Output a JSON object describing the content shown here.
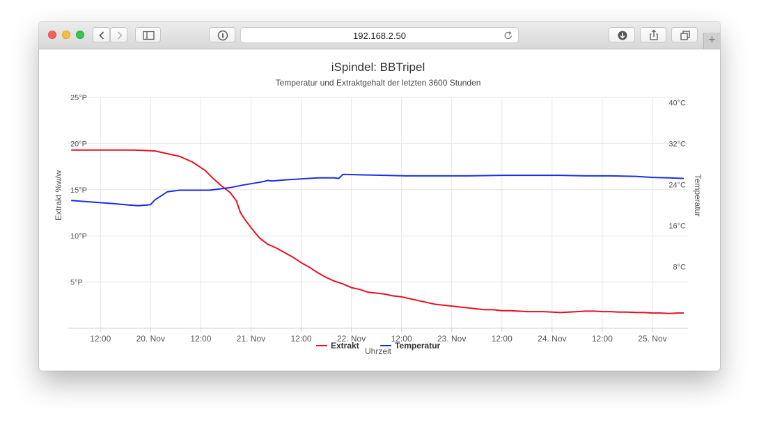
{
  "browser": {
    "url": "192.168.2.50",
    "new_tab_label": "+"
  },
  "chart_data": {
    "type": "line",
    "title": "iSpindel: BBTripel",
    "subtitle": "Temperatur und Extraktgehalt der letzten 3600 Stunden",
    "xlabel": "Uhrzeit",
    "ylabel_left": "Extrakt %w/w",
    "ylabel_right": "Temperatur",
    "x_unit": "hours since 19 Nov 00:00",
    "xlim": [
      4.3,
      152.5
    ],
    "x_ticks": [
      {
        "x": 12,
        "label": "12:00"
      },
      {
        "x": 24,
        "label": "20. Nov"
      },
      {
        "x": 36,
        "label": "12:00"
      },
      {
        "x": 48,
        "label": "21. Nov"
      },
      {
        "x": 60,
        "label": "12:00"
      },
      {
        "x": 72,
        "label": "22. Nov"
      },
      {
        "x": 84,
        "label": "12:00"
      },
      {
        "x": 96,
        "label": "23. Nov"
      },
      {
        "x": 108,
        "label": "12:00"
      },
      {
        "x": 120,
        "label": "24. Nov"
      },
      {
        "x": 132,
        "label": "12:00"
      },
      {
        "x": 144,
        "label": "25. Nov"
      }
    ],
    "y_left": {
      "lim": [
        0,
        25
      ],
      "ticks": [
        {
          "v": 25,
          "label": "25°P"
        },
        {
          "v": 20,
          "label": "20°P"
        },
        {
          "v": 15,
          "label": "15°P"
        },
        {
          "v": 10,
          "label": "10°P"
        },
        {
          "v": 5,
          "label": "5°P"
        }
      ]
    },
    "y_right": {
      "lim": [
        -4,
        41
      ],
      "ticks": [
        {
          "v": 40,
          "label": "40°C"
        },
        {
          "v": 32,
          "label": "32°C"
        },
        {
          "v": 24,
          "label": "24°C"
        },
        {
          "v": 16,
          "label": "16°C"
        },
        {
          "v": 8,
          "label": "8°C"
        }
      ]
    },
    "grid": true,
    "legend_position": "bottom-center",
    "series": [
      {
        "name": "Extrakt",
        "axis": "left",
        "color": "#e8101e",
        "points": [
          [
            5,
            19.3
          ],
          [
            10,
            19.3
          ],
          [
            15,
            19.3
          ],
          [
            20,
            19.3
          ],
          [
            25,
            19.2
          ],
          [
            28,
            18.9
          ],
          [
            31,
            18.6
          ],
          [
            34,
            18.0
          ],
          [
            37,
            17.1
          ],
          [
            39,
            16.2
          ],
          [
            41,
            15.4
          ],
          [
            43,
            14.7
          ],
          [
            44.5,
            13.8
          ],
          [
            45.5,
            12.5
          ],
          [
            46.5,
            11.8
          ],
          [
            48,
            10.9
          ],
          [
            50,
            9.8
          ],
          [
            52,
            9.1
          ],
          [
            54,
            8.7
          ],
          [
            56,
            8.2
          ],
          [
            58,
            7.7
          ],
          [
            60,
            7.1
          ],
          [
            62,
            6.6
          ],
          [
            64,
            6.0
          ],
          [
            66,
            5.5
          ],
          [
            68,
            5.1
          ],
          [
            70,
            4.8
          ],
          [
            72,
            4.4
          ],
          [
            74,
            4.2
          ],
          [
            76,
            3.9
          ],
          [
            78,
            3.8
          ],
          [
            80,
            3.7
          ],
          [
            82,
            3.5
          ],
          [
            84,
            3.4
          ],
          [
            86,
            3.2
          ],
          [
            88,
            3.0
          ],
          [
            90,
            2.8
          ],
          [
            92,
            2.6
          ],
          [
            94,
            2.5
          ],
          [
            96,
            2.4
          ],
          [
            98,
            2.3
          ],
          [
            100,
            2.2
          ],
          [
            102,
            2.1
          ],
          [
            104,
            2.0
          ],
          [
            106,
            2.0
          ],
          [
            108,
            1.9
          ],
          [
            110,
            1.9
          ],
          [
            112,
            1.85
          ],
          [
            114,
            1.8
          ],
          [
            116,
            1.8
          ],
          [
            118,
            1.8
          ],
          [
            120,
            1.75
          ],
          [
            122,
            1.7
          ],
          [
            124,
            1.75
          ],
          [
            126,
            1.8
          ],
          [
            128,
            1.85
          ],
          [
            130,
            1.85
          ],
          [
            132,
            1.8
          ],
          [
            134,
            1.8
          ],
          [
            136,
            1.75
          ],
          [
            138,
            1.75
          ],
          [
            140,
            1.7
          ],
          [
            142,
            1.7
          ],
          [
            144,
            1.65
          ],
          [
            146,
            1.65
          ],
          [
            148,
            1.6
          ],
          [
            150,
            1.65
          ],
          [
            151.5,
            1.65
          ]
        ]
      },
      {
        "name": "Temperatur",
        "axis": "right",
        "color": "#1b2ee0",
        "points": [
          [
            5,
            20.9
          ],
          [
            10,
            20.6
          ],
          [
            15,
            20.3
          ],
          [
            19,
            20.0
          ],
          [
            21,
            19.9
          ],
          [
            23,
            20.0
          ],
          [
            24,
            20.1
          ],
          [
            25,
            21.0
          ],
          [
            28,
            22.6
          ],
          [
            31,
            22.9
          ],
          [
            35,
            22.9
          ],
          [
            38,
            22.9
          ],
          [
            40,
            23.1
          ],
          [
            43,
            23.4
          ],
          [
            46,
            23.9
          ],
          [
            49,
            24.3
          ],
          [
            51,
            24.6
          ],
          [
            52,
            24.8
          ],
          [
            53,
            24.7
          ],
          [
            56,
            24.9
          ],
          [
            60,
            25.1
          ],
          [
            64,
            25.3
          ],
          [
            68,
            25.3
          ],
          [
            69,
            25.2
          ],
          [
            70,
            26.0
          ],
          [
            74,
            25.9
          ],
          [
            80,
            25.8
          ],
          [
            85,
            25.7
          ],
          [
            90,
            25.7
          ],
          [
            96,
            25.7
          ],
          [
            100,
            25.7
          ],
          [
            108,
            25.8
          ],
          [
            115,
            25.8
          ],
          [
            122,
            25.8
          ],
          [
            128,
            25.7
          ],
          [
            134,
            25.7
          ],
          [
            140,
            25.6
          ],
          [
            144,
            25.4
          ],
          [
            148,
            25.3
          ],
          [
            151.5,
            25.2
          ]
        ]
      }
    ]
  }
}
